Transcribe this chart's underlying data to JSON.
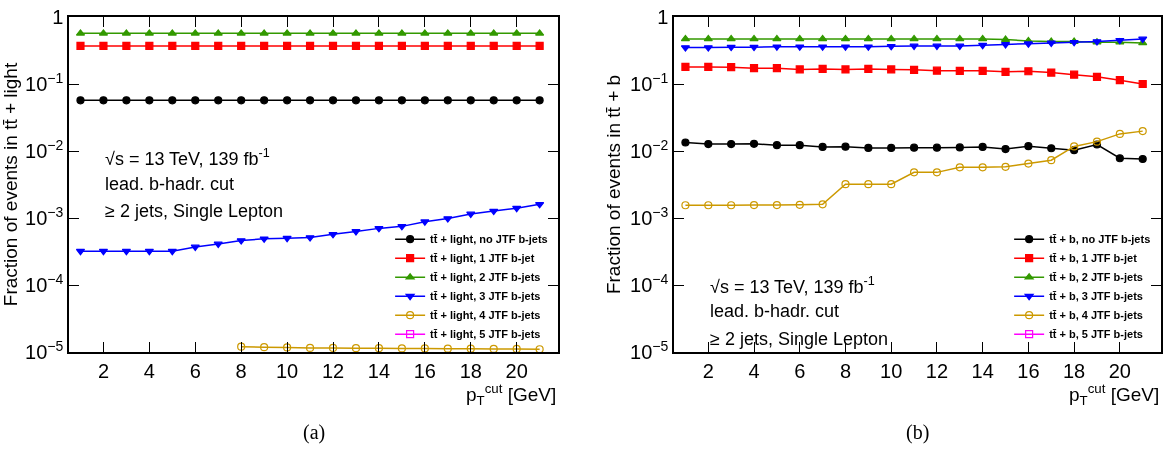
{
  "chart_data": [
    {
      "type": "line",
      "xlabel": "p$_{T}$$^{cut}$ [GeV]",
      "ylabel": "Fraction of events in tt̄ + light",
      "x": [
        1,
        2,
        3,
        4,
        5,
        6,
        7,
        8,
        9,
        10,
        11,
        12,
        13,
        14,
        15,
        16,
        17,
        18,
        19,
        20,
        21
      ],
      "xlim": [
        0.5,
        21.8
      ],
      "xticks": [
        2,
        4,
        6,
        8,
        10,
        12,
        14,
        16,
        18,
        20
      ],
      "ylim": [
        1e-05,
        1
      ],
      "yticks": [
        {
          "value": 1e-05,
          "label": "10$^{−5}$"
        },
        {
          "value": 0.0001,
          "label": "10$^{−4}$"
        },
        {
          "value": 0.001,
          "label": "10$^{−3}$"
        },
        {
          "value": 0.01,
          "label": "10$^{−2}$"
        },
        {
          "value": 0.1,
          "label": "10$^{−1}$"
        },
        1
      ],
      "log": "y",
      "grid": false,
      "legend": "bottom right",
      "series": [
        {
          "name": "tt̄ + light, no JTF b-jets",
          "color": "#000000",
          "marker": "circle",
          "values": [
            0.057,
            0.057,
            0.057,
            0.057,
            0.057,
            0.057,
            0.057,
            0.057,
            0.057,
            0.057,
            0.057,
            0.057,
            0.057,
            0.057,
            0.057,
            0.057,
            0.057,
            0.057,
            0.057,
            0.057,
            0.057
          ]
        },
        {
          "name": "tt̄ + light, 1 JTF b-jet",
          "color": "#ff0000",
          "marker": "square",
          "values": [
            0.37,
            0.37,
            0.37,
            0.37,
            0.37,
            0.37,
            0.37,
            0.37,
            0.37,
            0.37,
            0.37,
            0.37,
            0.37,
            0.37,
            0.37,
            0.37,
            0.37,
            0.37,
            0.37,
            0.37,
            0.37
          ]
        },
        {
          "name": "tt̄ + light, 2 JTF b-jets",
          "color": "#339900",
          "marker": "triangle",
          "values": [
            0.57,
            0.57,
            0.57,
            0.57,
            0.57,
            0.57,
            0.57,
            0.57,
            0.57,
            0.57,
            0.57,
            0.57,
            0.57,
            0.57,
            0.57,
            0.57,
            0.57,
            0.57,
            0.57,
            0.57,
            0.57
          ]
        },
        {
          "name": "tt̄ + light, 3 JTF b-jets",
          "color": "#0000ff",
          "marker": "triangle-down",
          "values": [
            0.00032,
            0.00032,
            0.00032,
            0.00032,
            0.00032,
            0.00037,
            0.00041,
            0.00046,
            0.00049,
            0.0005,
            0.00051,
            0.00057,
            0.00063,
            0.0007,
            0.00075,
            0.00088,
            0.00098,
            0.00115,
            0.00127,
            0.0014,
            0.0016
          ]
        },
        {
          "name": "tt̄ + light, 4 JTF b-jets",
          "color": "#cc9900",
          "marker": "circle-open",
          "values": [
            null,
            null,
            null,
            null,
            null,
            null,
            null,
            1.2e-05,
            1.18e-05,
            1.17e-05,
            1.15e-05,
            1.15e-05,
            1.14e-05,
            1.14e-05,
            1.13e-05,
            1.13e-05,
            1.12e-05,
            1.12e-05,
            1.11e-05,
            1.11e-05,
            1.1e-05
          ]
        },
        {
          "name": "tt̄ + light, 5 JTF b-jets",
          "color": "#ff00ff",
          "marker": "square-open",
          "values": [
            null,
            null,
            null,
            null,
            null,
            null,
            null,
            null,
            null,
            null,
            null,
            null,
            null,
            null,
            null,
            null,
            null,
            null,
            null,
            null,
            null
          ]
        }
      ],
      "annotations": [
        "√s = 13 TeV, 139 fb$^{-1}$",
        "lead. b-hadr. cut",
        "≥ 2 jets, Single Lepton",
        "(a)"
      ]
    },
    {
      "type": "line",
      "xlabel": "p$_{T}$$^{cut}$ [GeV]",
      "ylabel": "Fraction of events in tt̄ + b",
      "x": [
        1,
        2,
        3,
        4,
        5,
        6,
        7,
        8,
        9,
        10,
        11,
        12,
        13,
        14,
        15,
        16,
        17,
        18,
        19,
        20,
        21
      ],
      "xlim": [
        0.5,
        21.8
      ],
      "xticks": [
        2,
        4,
        6,
        8,
        10,
        12,
        14,
        16,
        18,
        20
      ],
      "ylim": [
        1e-05,
        1
      ],
      "yticks": [
        {
          "value": 1e-05,
          "label": "10$^{−5}$"
        },
        {
          "value": 0.0001,
          "label": "10$^{−4}$"
        },
        {
          "value": 0.001,
          "label": "10$^{−3}$"
        },
        {
          "value": 0.01,
          "label": "10$^{−2}$"
        },
        {
          "value": 0.1,
          "label": "10$^{−1}$"
        },
        1
      ],
      "log": "y",
      "grid": false,
      "legend": "bottom right",
      "series": [
        {
          "name": "tt̄ + b, no JTF b-jets",
          "color": "#000000",
          "marker": "circle",
          "values": [
            0.0134,
            0.0127,
            0.0127,
            0.0128,
            0.0122,
            0.0122,
            0.0115,
            0.0116,
            0.0111,
            0.0111,
            0.0112,
            0.0112,
            0.0113,
            0.0115,
            0.0107,
            0.0118,
            0.011,
            0.0103,
            0.0125,
            0.0078,
            0.0076
          ]
        },
        {
          "name": "tt̄ + b, 1 JTF b-jet",
          "color": "#ff0000",
          "marker": "square",
          "values": [
            0.18,
            0.18,
            0.178,
            0.172,
            0.172,
            0.165,
            0.168,
            0.165,
            0.168,
            0.165,
            0.163,
            0.158,
            0.157,
            0.157,
            0.152,
            0.155,
            0.148,
            0.138,
            0.128,
            0.114,
            0.1
          ]
        },
        {
          "name": "tt̄ + b, 2 JTF b-jets",
          "color": "#339900",
          "marker": "triangle",
          "values": [
            0.47,
            0.47,
            0.47,
            0.47,
            0.47,
            0.47,
            0.47,
            0.47,
            0.47,
            0.47,
            0.47,
            0.47,
            0.47,
            0.47,
            0.46,
            0.44,
            0.43,
            0.43,
            0.42,
            0.42,
            0.41
          ]
        },
        {
          "name": "tt̄ + b, 3 JTF b-jets",
          "color": "#0000ff",
          "marker": "triangle-down",
          "values": [
            0.35,
            0.35,
            0.355,
            0.355,
            0.36,
            0.36,
            0.36,
            0.36,
            0.36,
            0.365,
            0.37,
            0.37,
            0.37,
            0.38,
            0.39,
            0.4,
            0.41,
            0.42,
            0.43,
            0.45,
            0.47
          ]
        },
        {
          "name": "tt̄ + b, 4 JTF b-jets",
          "color": "#cc9900",
          "marker": "circle-open",
          "values": [
            0.00155,
            0.00155,
            0.00155,
            0.00156,
            0.00156,
            0.00157,
            0.0016,
            0.0032,
            0.0032,
            0.0032,
            0.0048,
            0.0048,
            0.0057,
            0.0057,
            0.0058,
            0.0065,
            0.0073,
            0.0117,
            0.0138,
            0.018,
            0.0198
          ]
        },
        {
          "name": "tt̄ + b, 5 JTF b-jets",
          "color": "#ff00ff",
          "marker": "square-open",
          "values": [
            null,
            null,
            null,
            null,
            null,
            null,
            null,
            null,
            null,
            null,
            null,
            null,
            null,
            null,
            null,
            null,
            null,
            null,
            null,
            null,
            null
          ]
        }
      ],
      "annotations": [
        "√s = 13 TeV, 139 fb$^{-1}$",
        "lead. b-hadr. cut",
        "≥ 2 jets, Single Lepton",
        "(b)"
      ]
    }
  ]
}
